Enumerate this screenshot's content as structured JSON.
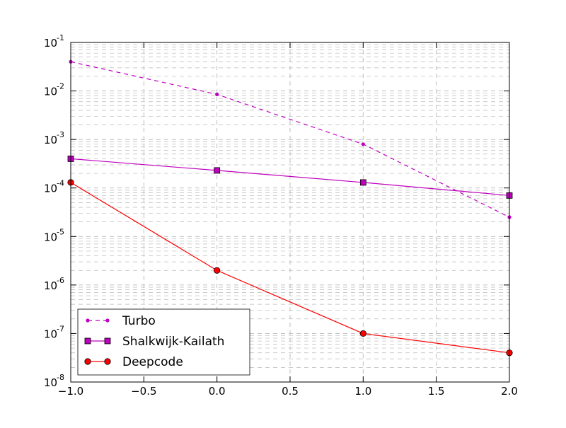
{
  "chart_data": {
    "type": "line",
    "title": "",
    "xlabel": "",
    "ylabel": "",
    "xlim": [
      -1.0,
      2.0
    ],
    "ylim": [
      1e-08,
      0.1
    ],
    "yscale": "log",
    "grid": true,
    "legend_position": "lower-left",
    "xticks": [
      "−1.0",
      "−0.5",
      "0.0",
      "0.5",
      "1.0",
      "1.5",
      "2.0"
    ],
    "xtick_values": [
      -1.0,
      -0.5,
      0.0,
      0.5,
      1.0,
      1.5,
      2.0
    ],
    "yticks": [
      {
        "base": "10",
        "exp": "-8"
      },
      {
        "base": "10",
        "exp": "-7"
      },
      {
        "base": "10",
        "exp": "-6"
      },
      {
        "base": "10",
        "exp": "-5"
      },
      {
        "base": "10",
        "exp": "-4"
      },
      {
        "base": "10",
        "exp": "-3"
      },
      {
        "base": "10",
        "exp": "-2"
      },
      {
        "base": "10",
        "exp": "-1"
      }
    ],
    "ytick_values": [
      1e-08,
      1e-07,
      1e-06,
      1e-05,
      0.0001,
      0.001,
      0.01,
      0.1
    ],
    "x": [
      -1.0,
      0.0,
      1.0,
      2.0
    ],
    "series": [
      {
        "name": "Turbo",
        "values": [
          0.04,
          0.0085,
          0.0008,
          2.5e-05
        ],
        "color": "#bf00bf",
        "line_style": "dashed",
        "marker": "dot"
      },
      {
        "name": "Shalkwijk-Kailath",
        "values": [
          0.0004,
          0.00023,
          0.00013,
          7e-05
        ],
        "color": "#bf00bf",
        "line_style": "solid",
        "marker": "square"
      },
      {
        "name": "Deepcode",
        "values": [
          0.00013,
          2e-06,
          1e-07,
          4e-08
        ],
        "color": "#ff0000",
        "line_style": "solid",
        "marker": "circle"
      }
    ]
  }
}
